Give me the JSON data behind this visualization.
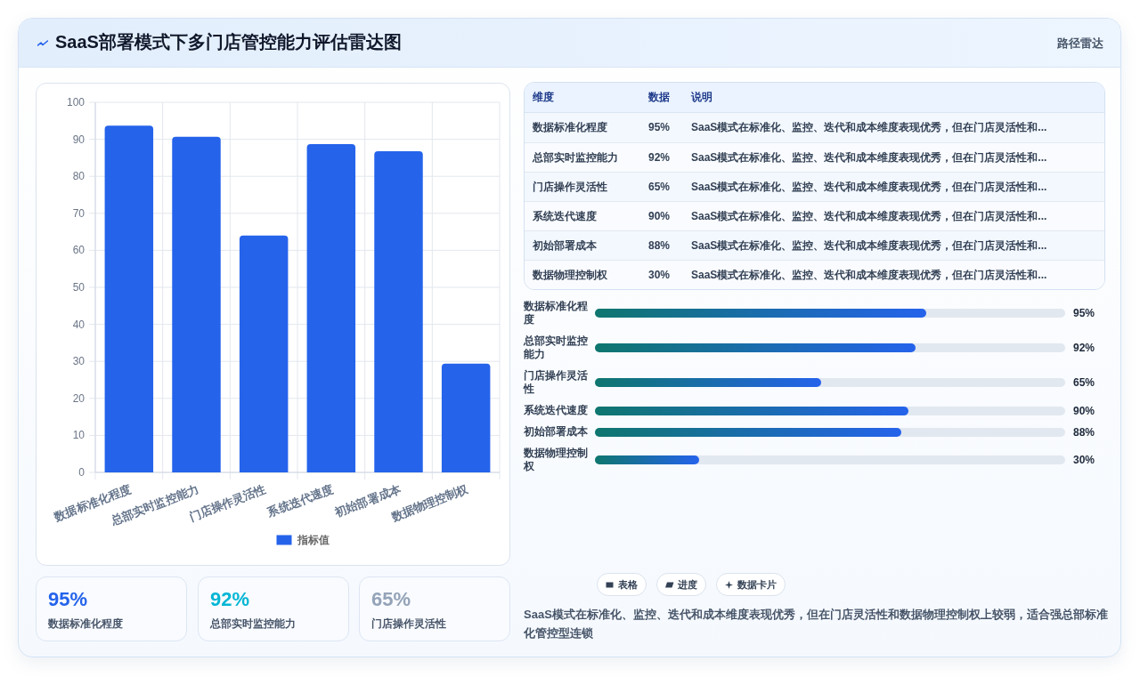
{
  "chart_data": [
    {
      "type": "other",
      "title": "SaaS部署模式下多门店管控能力评估雷达图",
      "subtitle": "路径雷达"
    },
    {
      "type": "bar",
      "categories": [
        "数据标准化程度",
        "总部实时监控能力",
        "门店操作灵活性",
        "系统迭代速度",
        "初始部署成本",
        "数据物理控制权"
      ],
      "series": [
        {
          "name": "指标值",
          "color": "#2563eb",
          "values": [
            93.7,
            90.7,
            64.0,
            88.7,
            86.8,
            29.4
          ]
        }
      ],
      "ylim": [
        0,
        100
      ],
      "yticks": [
        0,
        10,
        20,
        30,
        40,
        50,
        60,
        70,
        80,
        90,
        100
      ],
      "grid": true,
      "legend": "bottom"
    },
    {
      "type": "other",
      "categories": [
        "数据标准化程度",
        "总部实时监控能力",
        "门店操作灵活性",
        "系统迭代速度",
        "初始部署成本",
        "数据物理控制权"
      ],
      "value_labels": [
        "95%",
        "92%",
        "65%",
        "90%",
        "88%",
        "30%"
      ],
      "annotations": [
        "维度",
        "数据",
        "说明",
        "SaaS模式在标准化、监控、迭代和成本维度表现优秀，但在门店灵活性和...",
        "SaaS模式在标准化、监控、迭代和成本维度表现优秀，但在门店灵活性和...",
        "SaaS模式在标准化、监控、迭代和成本维度表现优秀，但在门店灵活性和...",
        "SaaS模式在标准化、监控、迭代和成本维度表现优秀，但在门店灵活性和...",
        "SaaS模式在标准化、监控、迭代和成本维度表现优秀，但在门店灵活性和...",
        "SaaS模式在标准化、监控、迭代和成本维度表现优秀，但在门店灵活性和..."
      ]
    },
    {
      "type": "bar",
      "orientation": "horizontal",
      "categories": [
        "数据标准化程度",
        "总部实时监控能力",
        "门店操作灵活性",
        "系统迭代速度",
        "初始部署成本",
        "数据物理控制权"
      ],
      "values": [
        95,
        92,
        65,
        90,
        88,
        30
      ],
      "color": "#2563eb",
      "value_labels": [
        "95%",
        "92%",
        "65%",
        "90%",
        "88%",
        "30%"
      ],
      "xlim": [
        0,
        135
      ]
    },
    {
      "type": "other",
      "categories": [
        "数据标准化程度",
        "总部实时监控能力",
        "门店操作灵活性"
      ],
      "value_labels": [
        "95%",
        "92%",
        "65%"
      ]
    },
    {
      "type": "other",
      "annotations": [
        "表格",
        "进度",
        "数据卡片",
        "SaaS模式在标准化、监控、迭代和成本维度表现优秀，但在门店灵活性和数据物理控制权上较弱，适合强总部标准化管控型连锁"
      ]
    }
  ]
}
